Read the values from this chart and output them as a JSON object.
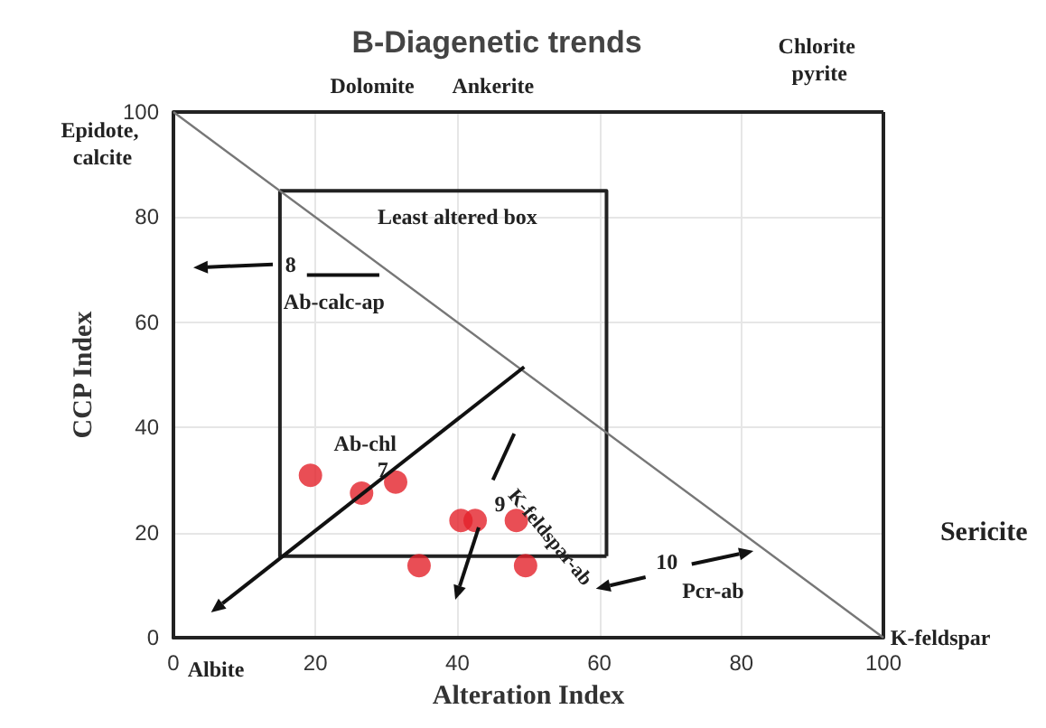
{
  "chart_data": {
    "type": "scatter",
    "title": "B-Diagenetic trends",
    "xlabel": "Alteration Index",
    "ylabel": "CCP Index",
    "xlim": [
      0,
      100
    ],
    "xticks": [
      0,
      20,
      40,
      60,
      80,
      100
    ],
    "ylim": [
      0,
      100
    ],
    "yticks": [
      0,
      20,
      40,
      60,
      80,
      100
    ],
    "grid": true,
    "marker": "circle",
    "series": [
      {
        "color": "#e3222b",
        "x": [
          19.3,
          26.5,
          31.3,
          40.5,
          42.5,
          48.3,
          34.6,
          49.6
        ],
        "values": [
          30.9,
          27.5,
          29.6,
          22.3,
          22.3,
          22.3,
          13.7,
          13.7
        ]
      },
      {
        "type": "line",
        "marker": "none",
        "color": "#222222",
        "x": [
          15,
          15,
          61
        ],
        "values": [
          85,
          15.5,
          15.5
        ]
      },
      {
        "type": "line",
        "marker": "none",
        "color": "#222222",
        "x": [
          15,
          61,
          61
        ],
        "values": [
          85,
          85,
          15.5
        ]
      },
      {
        "type": "line",
        "marker": "none",
        "color": "#777777",
        "x": [
          0,
          100
        ],
        "values": [
          100,
          0
        ]
      }
    ],
    "annotations": [
      "Least altered box",
      "8",
      "Ab-calc-ap",
      "Ab-chl",
      "7",
      "9",
      "K-feldspar-ab",
      "10",
      "Pcr-ab",
      "Dolomite",
      "Ankerite",
      "Chlorite pyrite",
      "Epidote, calcite",
      "Sericite",
      "K-feldspar",
      "Albite"
    ]
  }
}
